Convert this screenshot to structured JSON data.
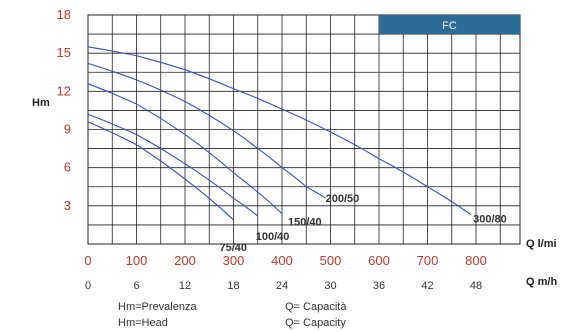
{
  "chart_data": {
    "type": "line",
    "badge": "FC",
    "y_axis_label": "Hm",
    "x_axis_label_top": "Q l/mi",
    "x_axis_label_bottom": "Q m/h",
    "ylim": [
      0,
      18
    ],
    "xlim": [
      0,
      900
    ],
    "y_ticks": [
      "3",
      "6",
      "9",
      "12",
      "15",
      "18"
    ],
    "x_ticks_lpm": [
      "0",
      "100",
      "200",
      "300",
      "400",
      "500",
      "600",
      "700",
      "800"
    ],
    "x_ticks_m3h": [
      "0",
      "6",
      "12",
      "18",
      "24",
      "30",
      "36",
      "42",
      "48"
    ],
    "grid": true,
    "series": [
      {
        "name": "300/80",
        "x": [
          0,
          100,
          200,
          300,
          400,
          500,
          600,
          700,
          790
        ],
        "y": [
          15.5,
          14.8,
          13.7,
          12.2,
          10.6,
          8.8,
          6.7,
          4.5,
          2.3
        ]
      },
      {
        "name": "200/50",
        "x": [
          0,
          100,
          200,
          300,
          350,
          400,
          450,
          490
        ],
        "y": [
          14.2,
          12.9,
          11.2,
          8.9,
          7.5,
          6.0,
          4.5,
          3.6
        ]
      },
      {
        "name": "150/40",
        "x": [
          0,
          100,
          200,
          300,
          400
        ],
        "y": [
          12.6,
          11.0,
          8.6,
          5.6,
          2.4
        ]
      },
      {
        "name": "100/40",
        "x": [
          0,
          100,
          200,
          300,
          350
        ],
        "y": [
          10.2,
          8.6,
          6.3,
          3.6,
          2.2
        ]
      },
      {
        "name": "75/40",
        "x": [
          0,
          100,
          200,
          300
        ],
        "y": [
          9.6,
          7.8,
          5.1,
          1.9
        ]
      }
    ],
    "legend_lines": [
      [
        "Hm=Prevalenza",
        "Q= Capacità"
      ],
      [
        "Hm=Head",
        "Q= Capacity"
      ]
    ]
  }
}
